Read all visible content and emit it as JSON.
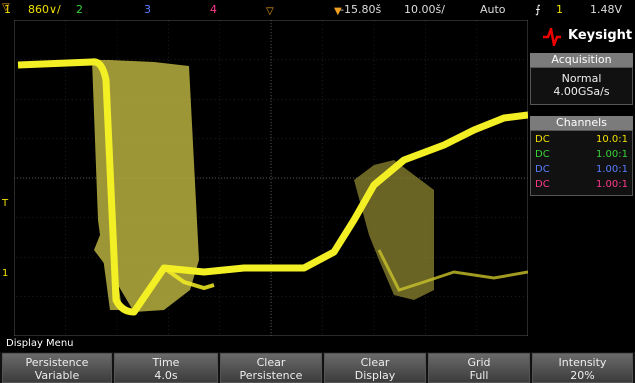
{
  "top": {
    "ch1_num": "1",
    "ch1_scale": "860∨/",
    "ch2": "2",
    "ch3": "3",
    "ch4": "4",
    "delay": "-15.80š",
    "timebase": "10.00š/",
    "mode": "Auto",
    "trig_icon": "⨍",
    "trig_ch": "1",
    "trig_level": "1.48V"
  },
  "side": {
    "brand": "Keysight",
    "acquisition_title": "Acquisition",
    "acq_mode": "Normal",
    "acq_rate": "4.00GSa/s",
    "channels_title": "Channels",
    "channels": [
      {
        "coupling": "DC",
        "probe": "10.0:1",
        "color": "#f0e000"
      },
      {
        "coupling": "DC",
        "probe": "1.00:1",
        "color": "#39d339"
      },
      {
        "coupling": "DC",
        "probe": "1.00:1",
        "color": "#5a7dff"
      },
      {
        "coupling": "DC",
        "probe": "1.00:1",
        "color": "#ff3a8a"
      }
    ]
  },
  "menu": {
    "title": "Display Menu",
    "keys": [
      {
        "top": "Persistence",
        "bottom": "Variable"
      },
      {
        "top": "Time",
        "bottom": "4.0s"
      },
      {
        "top": "Clear",
        "bottom": "Persistence"
      },
      {
        "top": "Clear",
        "bottom": "Display"
      },
      {
        "top": "Grid",
        "bottom": "Full"
      },
      {
        "top": "Intensity",
        "bottom": "20%"
      }
    ]
  },
  "markers": {
    "trigger_level": "T",
    "ch1_ground": "1"
  }
}
